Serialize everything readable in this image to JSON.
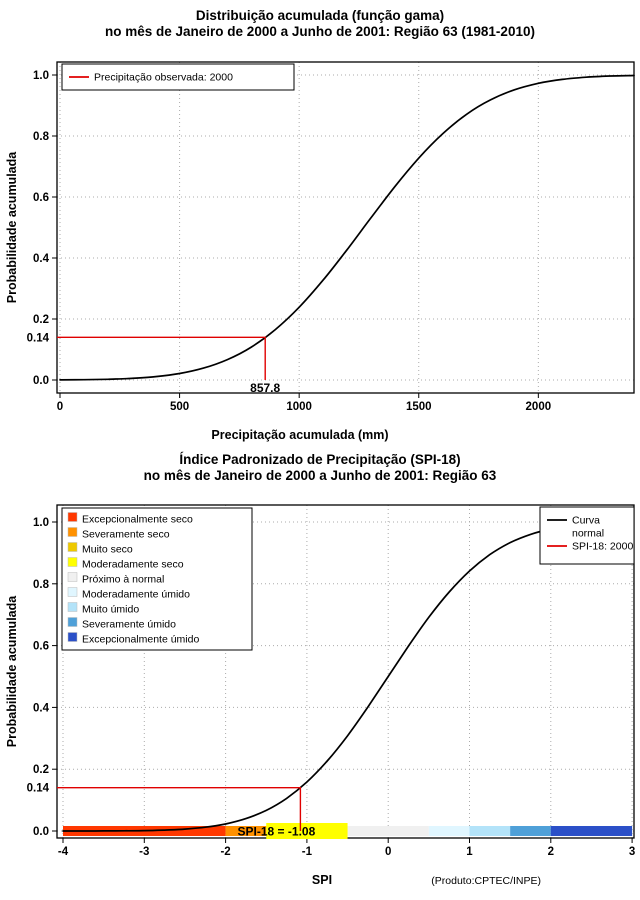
{
  "accent_red": "#e00000",
  "chart_data": [
    {
      "type": "line",
      "title": "Distribuição acumulada (função gama)",
      "subtitle": "no mês de Janeiro de 2000 a Junho de 2001: Região 63 (1981-2010)",
      "xlabel": "Precipitação acumulada (mm)",
      "ylabel": "Probabilidade acumulada",
      "xlim": [
        0,
        2400
      ],
      "ylim": [
        0,
        1
      ],
      "grid": true,
      "xticks": [
        0,
        500,
        1000,
        1500,
        2000
      ],
      "xtick_labels": [
        "0",
        "500",
        "1000",
        "1500",
        "2000"
      ],
      "yticks": [
        0,
        0.2,
        0.4,
        0.6,
        0.8,
        1
      ],
      "ytick_labels": [
        "0.0",
        "0.2",
        "0.4",
        "0.6",
        "0.8",
        "1.0"
      ],
      "series": [
        {
          "name": "Distribuição acumulada (função gama)",
          "color": "#000000",
          "x": [
            0,
            100,
            200,
            300,
            400,
            500,
            600,
            700,
            800,
            900,
            1000,
            1100,
            1200,
            1300,
            1400,
            1500,
            1600,
            1700,
            1800,
            1900,
            2000,
            2100,
            2200,
            2300,
            2400
          ],
          "y": [
            0.0004,
            0.001,
            0.0024,
            0.0053,
            0.011,
            0.0214,
            0.0389,
            0.0668,
            0.108,
            0.1651,
            0.2386,
            0.3274,
            0.427,
            0.5315,
            0.6338,
            0.7274,
            0.8073,
            0.8712,
            0.9185,
            0.9514,
            0.9727,
            0.9855,
            0.9928,
            0.9966,
            0.9985
          ]
        }
      ],
      "annotation": {
        "x": 857.8,
        "y": 0.14,
        "x_label": "857.8",
        "y_label": "0.14",
        "color": "#e00000",
        "label_inline": false
      },
      "legend": {
        "position": "top-left",
        "entries": [
          {
            "label": "Precipitação observada: 2000",
            "color": "#e00000"
          }
        ]
      }
    },
    {
      "type": "line",
      "title": "Índice Padronizado de Precipitação (SPI-18)",
      "subtitle": "no mês de Janeiro de 2000 a Junho de 2001: Região 63",
      "xlabel": "SPI",
      "ylabel": "Probabilidade acumulada",
      "xlim": [
        -4,
        3
      ],
      "ylim": [
        0,
        1
      ],
      "grid": true,
      "xticks": [
        -4,
        -3,
        -2,
        -1,
        0,
        1,
        2,
        3
      ],
      "xtick_labels": [
        "-4",
        "-3",
        "-2",
        "-1",
        "0",
        "1",
        "2",
        "3"
      ],
      "yticks": [
        0,
        0.2,
        0.4,
        0.6,
        0.8,
        1
      ],
      "ytick_labels": [
        "0.0",
        "0.2",
        "0.4",
        "0.6",
        "0.8",
        "1.0"
      ],
      "series": [
        {
          "name": "Curva normal",
          "color": "#000000",
          "x": [
            -4,
            -3.75,
            -3.5,
            -3.25,
            -3,
            -2.75,
            -2.5,
            -2.25,
            -2,
            -1.75,
            -1.5,
            -1.25,
            -1,
            -0.75,
            -0.5,
            -0.25,
            0,
            0.25,
            0.5,
            0.75,
            1,
            1.25,
            1.5,
            1.75,
            2,
            2.25,
            2.5,
            2.75,
            3
          ],
          "y": [
            0.0,
            0.0001,
            0.0002,
            0.0006,
            0.0013,
            0.003,
            0.0062,
            0.0122,
            0.0228,
            0.0401,
            0.0668,
            0.1056,
            0.1587,
            0.2266,
            0.3085,
            0.4013,
            0.5,
            0.5987,
            0.6915,
            0.7734,
            0.8413,
            0.8944,
            0.9332,
            0.9599,
            0.9772,
            0.9878,
            0.9938,
            0.997,
            0.9987
          ]
        }
      ],
      "annotation": {
        "x": -1.08,
        "y": 0.14,
        "x_label": "SPI-18 = -1.08",
        "y_label": "0.14",
        "color": "#e00000",
        "label_inline": true,
        "highlight_color": "#ffff00",
        "highlight_range": [
          -1.5,
          -0.5
        ]
      },
      "legend_right": {
        "position": "top-right",
        "entries": [
          {
            "label": "Curva normal",
            "lines": [
              "Curva",
              "normal"
            ],
            "color": "#000000"
          },
          {
            "label": "SPI-18: 2000",
            "lines": [
              "SPI-18: 2000"
            ],
            "color": "#e00000"
          }
        ]
      },
      "legend_categories": [
        {
          "label": "Excepcionalmente seco",
          "color": "#FF3800"
        },
        {
          "label": "Severamente seco",
          "color": "#FF9100"
        },
        {
          "label": "Muito seco",
          "color": "#EEC900"
        },
        {
          "label": "Moderadamente seco",
          "color": "#FFFF00"
        },
        {
          "label": "Próximo à normal",
          "color": "#F0F0F0"
        },
        {
          "label": "Moderadamente úmido",
          "color": "#E0F6FF"
        },
        {
          "label": "Muito úmido",
          "color": "#B3E3F9"
        },
        {
          "label": "Severamente úmido",
          "color": "#4FA0D8"
        },
        {
          "label": "Excepcionalmente úmido",
          "color": "#2B50C8"
        }
      ],
      "spi_bar": {
        "breaks": [
          -4,
          -2,
          -1.5,
          -1,
          -0.5,
          0.5,
          1,
          1.5,
          2,
          3
        ],
        "colors": [
          "#FF3800",
          "#FF9100",
          "#EEC900",
          "#FFFF00",
          "#F0F0F0",
          "#E0F6FF",
          "#B3E3F9",
          "#4FA0D8",
          "#2B50C8"
        ]
      },
      "footer": "(Produto:CPTEC/INPE)"
    }
  ]
}
